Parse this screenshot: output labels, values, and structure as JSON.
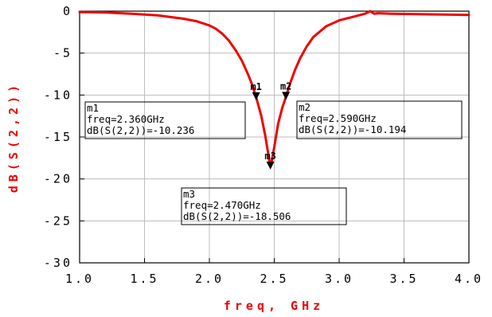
{
  "chart_data": {
    "type": "line",
    "xlabel": "freq, GHz",
    "ylabel": "dB(S(2,2))",
    "xlim": [
      1.0,
      4.0
    ],
    "ylim": [
      -30,
      0
    ],
    "xticks": [
      1.0,
      1.5,
      2.0,
      2.5,
      3.0,
      3.5,
      4.0
    ],
    "xtick_labels": [
      "1.0",
      "1.5",
      "2.0",
      "2.5",
      "3.0",
      "3.5",
      "4.0"
    ],
    "yticks": [
      0,
      -5,
      -10,
      -15,
      -20,
      -25,
      -30
    ],
    "ytick_labels": [
      "0",
      "-5",
      "-10",
      "-15",
      "-20",
      "-25",
      "-30"
    ],
    "grid": true,
    "series_color": "#ee0000",
    "series": [
      {
        "x": [
          1.0,
          1.2,
          1.4,
          1.6,
          1.8,
          1.9,
          2.0,
          2.05,
          2.1,
          2.15,
          2.2,
          2.25,
          2.3,
          2.33,
          2.36,
          2.4,
          2.43,
          2.46,
          2.47,
          2.48,
          2.5,
          2.53,
          2.56,
          2.59,
          2.62,
          2.66,
          2.7,
          2.75,
          2.8,
          2.9,
          3.0,
          3.1,
          3.2,
          3.24,
          3.27,
          3.3,
          3.4,
          3.6,
          3.8,
          4.0
        ],
        "y": [
          -0.1,
          -0.15,
          -0.3,
          -0.5,
          -0.9,
          -1.2,
          -1.7,
          -2.1,
          -2.7,
          -3.5,
          -4.6,
          -5.9,
          -7.6,
          -8.8,
          -10.236,
          -12.5,
          -14.8,
          -17.6,
          -18.506,
          -18.0,
          -16.2,
          -13.4,
          -11.6,
          -10.194,
          -8.7,
          -7.0,
          -5.6,
          -4.2,
          -3.1,
          -1.8,
          -1.1,
          -0.7,
          -0.3,
          0.0,
          -0.3,
          -0.25,
          -0.3,
          -0.35,
          -0.4,
          -0.45
        ]
      }
    ],
    "markers": [
      {
        "id": "m1",
        "label": "m1",
        "x": 2.36,
        "y": -10.236,
        "box_lines": [
          "m1",
          "freq=2.360GHz",
          "dB(S(2,2))=-10.236"
        ]
      },
      {
        "id": "m2",
        "label": "m2",
        "x": 2.59,
        "y": -10.194,
        "box_lines": [
          "m2",
          "freq=2.590GHz",
          "dB(S(2,2))=-10.194"
        ]
      },
      {
        "id": "m3",
        "label": "m3",
        "x": 2.47,
        "y": -18.506,
        "box_lines": [
          "m3",
          "freq=2.470GHz",
          "dB(S(2,2))=-18.506"
        ]
      }
    ]
  }
}
